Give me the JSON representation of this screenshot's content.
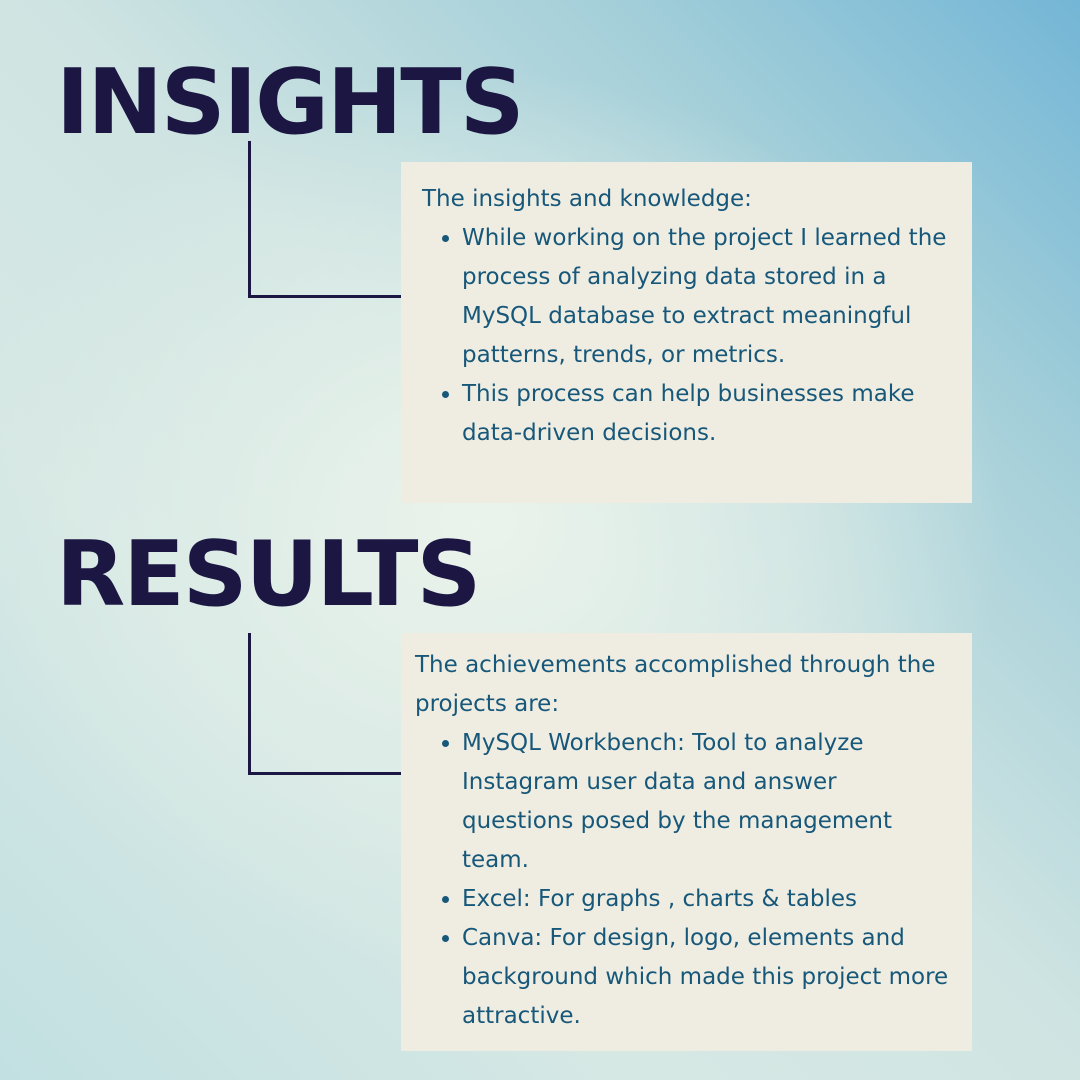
{
  "insights": {
    "heading": "INSIGHTS",
    "intro": "The insights and knowledge:",
    "bullets": [
      "While working on the project I learned the process of analyzing data stored in a MySQL database to extract meaningful patterns, trends, or metrics.",
      "This process can help businesses make data-driven decisions."
    ]
  },
  "results": {
    "heading": "RESULTS",
    "intro": "The achievements accomplished through the projects are:",
    "bullets": [
      "MySQL Workbench: Tool to analyze Instagram user data and answer questions posed by the management team.",
      "Excel: For graphs , charts & tables",
      "Canva: For design, logo, elements and background which made this project more attractive."
    ]
  },
  "colors": {
    "heading": "#1b1642",
    "body_text": "#17587a",
    "card_background": "#efede2"
  }
}
